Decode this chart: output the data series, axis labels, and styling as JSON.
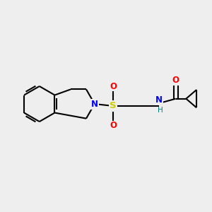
{
  "background_color": "#eeeeee",
  "bond_color": "#000000",
  "N_color": "#0000ff",
  "S_color": "#cccc00",
  "O_color": "#ff0000",
  "NH_color": "#008080",
  "line_width": 1.5,
  "figsize": [
    3.0,
    3.0
  ],
  "dpi": 100,
  "xlim": [
    0,
    10
  ],
  "ylim": [
    0,
    10
  ]
}
